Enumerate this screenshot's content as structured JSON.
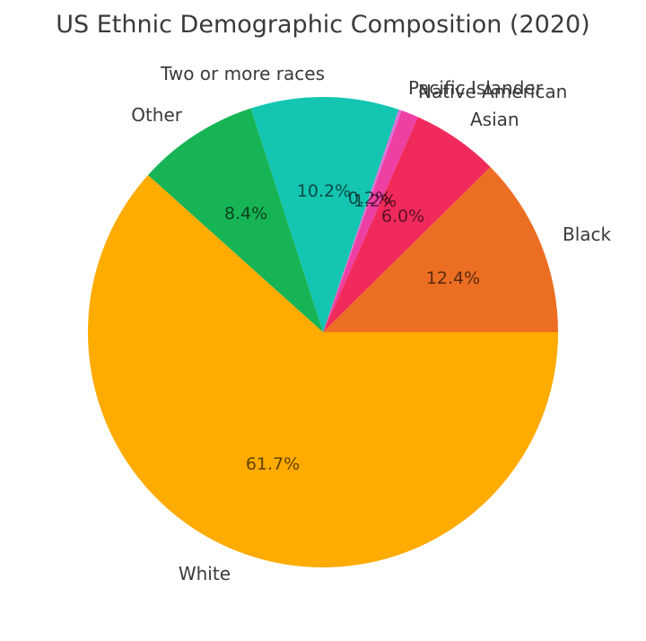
{
  "chart_data": {
    "type": "pie",
    "title": "US Ethnic Demographic Composition (2020)",
    "start_angle_deg": 0,
    "direction": "counterclockwise",
    "total": 100.1,
    "label_text_color": "#3a3a3a",
    "pct_text_color": "rgba(0,0,0,0.62)",
    "series": [
      {
        "label": "Black",
        "value": 12.4,
        "pct_label": "12.4%",
        "color": "#EC6E23",
        "label_align": "left"
      },
      {
        "label": "Asian",
        "value": 6.0,
        "pct_label": "6.0%",
        "color": "#F12A5C",
        "label_align": "left"
      },
      {
        "label": "Native American",
        "value": 1.2,
        "pct_label": "1.2%",
        "color": "#EE3FA3",
        "label_align": "left"
      },
      {
        "label": "Pacific Islander",
        "value": 0.2,
        "pct_label": "0.2%",
        "color": "#DB70D8",
        "label_align": "left"
      },
      {
        "label": "Two or more races",
        "value": 10.2,
        "pct_label": "10.2%",
        "color": "#14C5B1",
        "label_align": "right"
      },
      {
        "label": "Other",
        "value": 8.4,
        "pct_label": "8.4%",
        "color": "#17B456",
        "label_align": "right"
      },
      {
        "label": "White",
        "value": 61.7,
        "pct_label": "61.7%",
        "color": "#FFAB00",
        "label_align": "right"
      }
    ]
  }
}
